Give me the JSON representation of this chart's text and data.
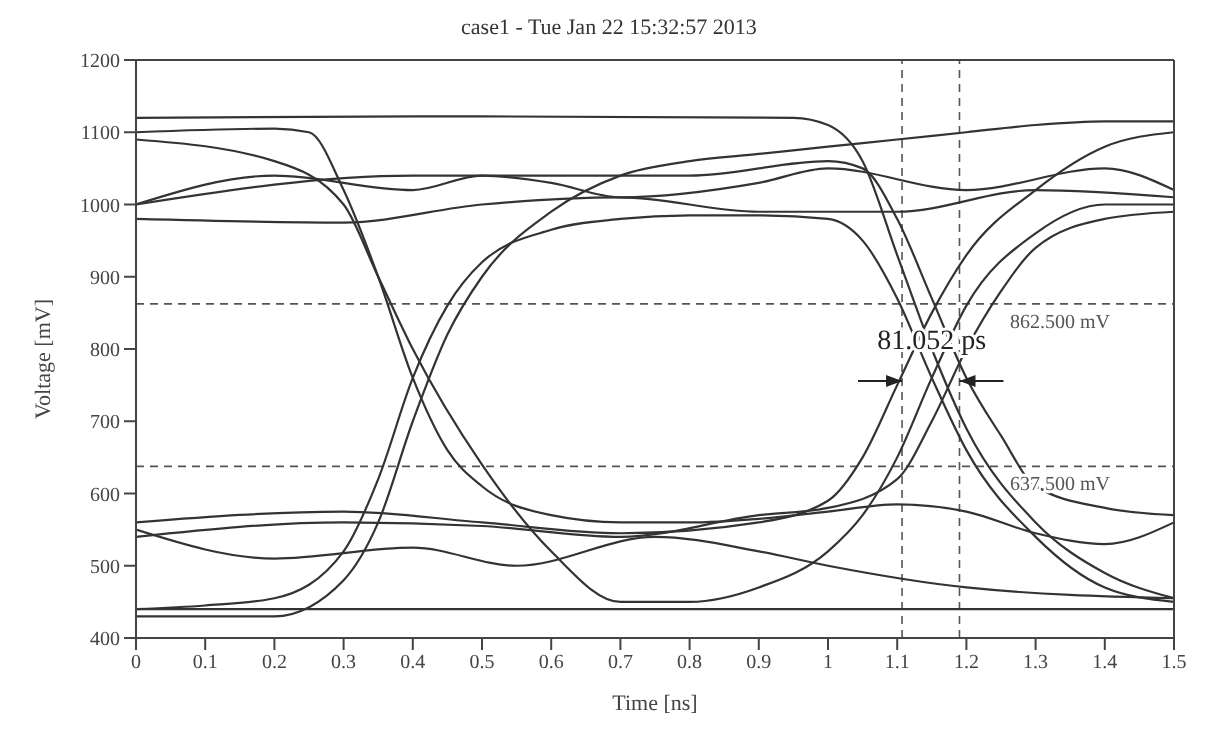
{
  "chart_data": {
    "type": "line",
    "title": "case1 - Tue Jan 22 15:32:57 2013",
    "xlabel": "Time [ns]",
    "ylabel": "Voltage [mV]",
    "xlim": [
      0,
      1.5
    ],
    "xticks": [
      0,
      0.1,
      0.2,
      0.3,
      0.4,
      0.5,
      0.6,
      0.7,
      0.8,
      0.9,
      1,
      1.1,
      1.2,
      1.3,
      1.4,
      1.5
    ],
    "ylim": [
      400,
      1200
    ],
    "yticks": [
      400,
      500,
      600,
      700,
      800,
      900,
      1000,
      1100,
      1200
    ],
    "marker": "none",
    "line_style": "solid",
    "series": [
      {
        "color": "#333333",
        "x": [
          0,
          0.5,
          0.95,
          1.0,
          1.05,
          1.1,
          1.15,
          1.2,
          1.3,
          1.4,
          1.5
        ],
        "values": [
          1120,
          1122,
          1120,
          1110,
          1060,
          930,
          800,
          690,
          560,
          490,
          455
        ]
      },
      {
        "color": "#333333",
        "x": [
          0,
          0.2,
          0.25,
          0.3,
          0.35,
          0.4,
          0.45,
          0.5,
          0.6,
          0.7,
          0.8,
          0.9,
          1.0,
          1.1,
          1.2,
          1.3,
          1.4,
          1.5
        ],
        "values": [
          1100,
          1105,
          1100,
          1020,
          900,
          760,
          660,
          610,
          570,
          560,
          560,
          565,
          575,
          585,
          575,
          545,
          530,
          560
        ]
      },
      {
        "color": "#333333",
        "x": [
          0,
          0.1,
          0.2,
          0.3,
          0.35,
          0.4,
          0.45,
          0.5,
          0.6,
          0.7,
          0.8,
          0.9,
          1.0,
          1.05,
          1.1,
          1.15,
          1.2,
          1.3,
          1.4,
          1.5
        ],
        "values": [
          440,
          445,
          455,
          520,
          620,
          760,
          860,
          920,
          965,
          980,
          985,
          985,
          980,
          950,
          870,
          760,
          660,
          540,
          470,
          450
        ]
      },
      {
        "color": "#333333",
        "x": [
          0,
          0.2,
          0.3,
          0.35,
          0.4,
          0.45,
          0.5,
          0.6,
          0.7,
          0.8,
          0.9,
          1.0,
          1.1,
          1.2,
          1.3,
          1.4,
          1.5
        ],
        "values": [
          430,
          430,
          480,
          560,
          700,
          820,
          900,
          990,
          1040,
          1060,
          1070,
          1080,
          1090,
          1100,
          1110,
          1115,
          1115
        ]
      },
      {
        "color": "#333333",
        "x": [
          0,
          0.5,
          1.0,
          1.5
        ],
        "values": [
          440,
          440,
          440,
          440
        ]
      },
      {
        "color": "#333333",
        "x": [
          0,
          0.2,
          0.4,
          0.55,
          0.75,
          0.9,
          1.0,
          1.2,
          1.5
        ],
        "values": [
          550,
          510,
          525,
          500,
          540,
          520,
          500,
          470,
          455
        ]
      },
      {
        "color": "#333333",
        "x": [
          0,
          0.2,
          0.4,
          0.5,
          0.6,
          0.7,
          0.9,
          1.0,
          1.2,
          1.4,
          1.5
        ],
        "values": [
          1000,
          1040,
          1020,
          1040,
          1030,
          1010,
          1030,
          1050,
          1020,
          1050,
          1020
        ]
      },
      {
        "color": "#333333",
        "x": [
          0,
          0.3,
          0.5,
          0.7,
          0.9,
          1.0,
          1.05,
          1.1,
          1.15,
          1.2,
          1.3,
          1.4,
          1.5
        ],
        "values": [
          560,
          575,
          560,
          545,
          560,
          590,
          650,
          750,
          850,
          930,
          1020,
          1080,
          1100
        ]
      },
      {
        "color": "#333333",
        "x": [
          0,
          0.2,
          0.3,
          0.35,
          0.4,
          0.5,
          0.6,
          0.7,
          0.8,
          0.9,
          1.0,
          1.05,
          1.1,
          1.15,
          1.2,
          1.3,
          1.4,
          1.5
        ],
        "values": [
          1090,
          1060,
          1000,
          900,
          800,
          640,
          520,
          450,
          450,
          470,
          520,
          570,
          650,
          760,
          860,
          960,
          1000,
          1000
        ]
      },
      {
        "color": "#333333",
        "x": [
          0,
          0.3,
          0.5,
          0.7,
          0.9,
          1.0,
          1.1,
          1.3,
          1.5
        ],
        "values": [
          980,
          975,
          1000,
          1010,
          990,
          990,
          990,
          1020,
          1010
        ]
      },
      {
        "color": "#333333",
        "x": [
          0,
          0.3,
          0.5,
          0.7,
          0.9,
          1.0,
          1.1,
          1.15,
          1.2,
          1.25,
          1.3,
          1.4,
          1.5
        ],
        "values": [
          540,
          560,
          555,
          540,
          570,
          580,
          620,
          700,
          800,
          880,
          940,
          980,
          990
        ]
      },
      {
        "color": "#333333",
        "x": [
          0,
          0.4,
          0.8,
          1.0,
          1.05,
          1.1,
          1.15,
          1.2,
          1.25,
          1.3,
          1.4,
          1.5
        ],
        "values": [
          1000,
          1040,
          1040,
          1060,
          1050,
          980,
          870,
          760,
          680,
          610,
          580,
          570
        ]
      }
    ],
    "ref_lines": [
      {
        "axis": "y",
        "value": 862.5,
        "label": "862.500 mV",
        "color": "#555555",
        "line_style": "dashed"
      },
      {
        "axis": "y",
        "value": 637.5,
        "label": "637.500 mV",
        "color": "#555555",
        "line_style": "dashed"
      },
      {
        "axis": "x",
        "value": 1.107,
        "label": null,
        "color": "#555555",
        "line_style": "dashed"
      },
      {
        "axis": "x",
        "value": 1.19,
        "label": null,
        "color": "#555555",
        "line_style": "dashed"
      }
    ],
    "annotations": [
      {
        "text": "81.052 ps",
        "x": 1.15,
        "y": 800
      }
    ]
  }
}
